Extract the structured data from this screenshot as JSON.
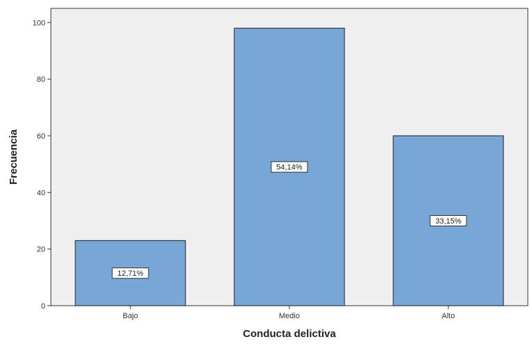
{
  "chart_data": {
    "type": "bar",
    "title": "",
    "xlabel": "Conducta delictiva",
    "ylabel": "Frecuencia",
    "categories": [
      "Bajo",
      "Medio",
      "Alto"
    ],
    "values": [
      23,
      98,
      60
    ],
    "data_labels": [
      "12,71%",
      "54,14%",
      "33,15%"
    ],
    "ylim": [
      0,
      105
    ],
    "yticks": [
      0,
      20,
      40,
      60,
      80,
      100
    ],
    "grid": false,
    "legend": "none",
    "colors": {
      "bar_fill": "#77a7d6",
      "bar_stroke": "#2f3a48",
      "plot_background": "#f0f0f0",
      "axis": "#333333",
      "label_box_fill": "#ffffff"
    }
  }
}
